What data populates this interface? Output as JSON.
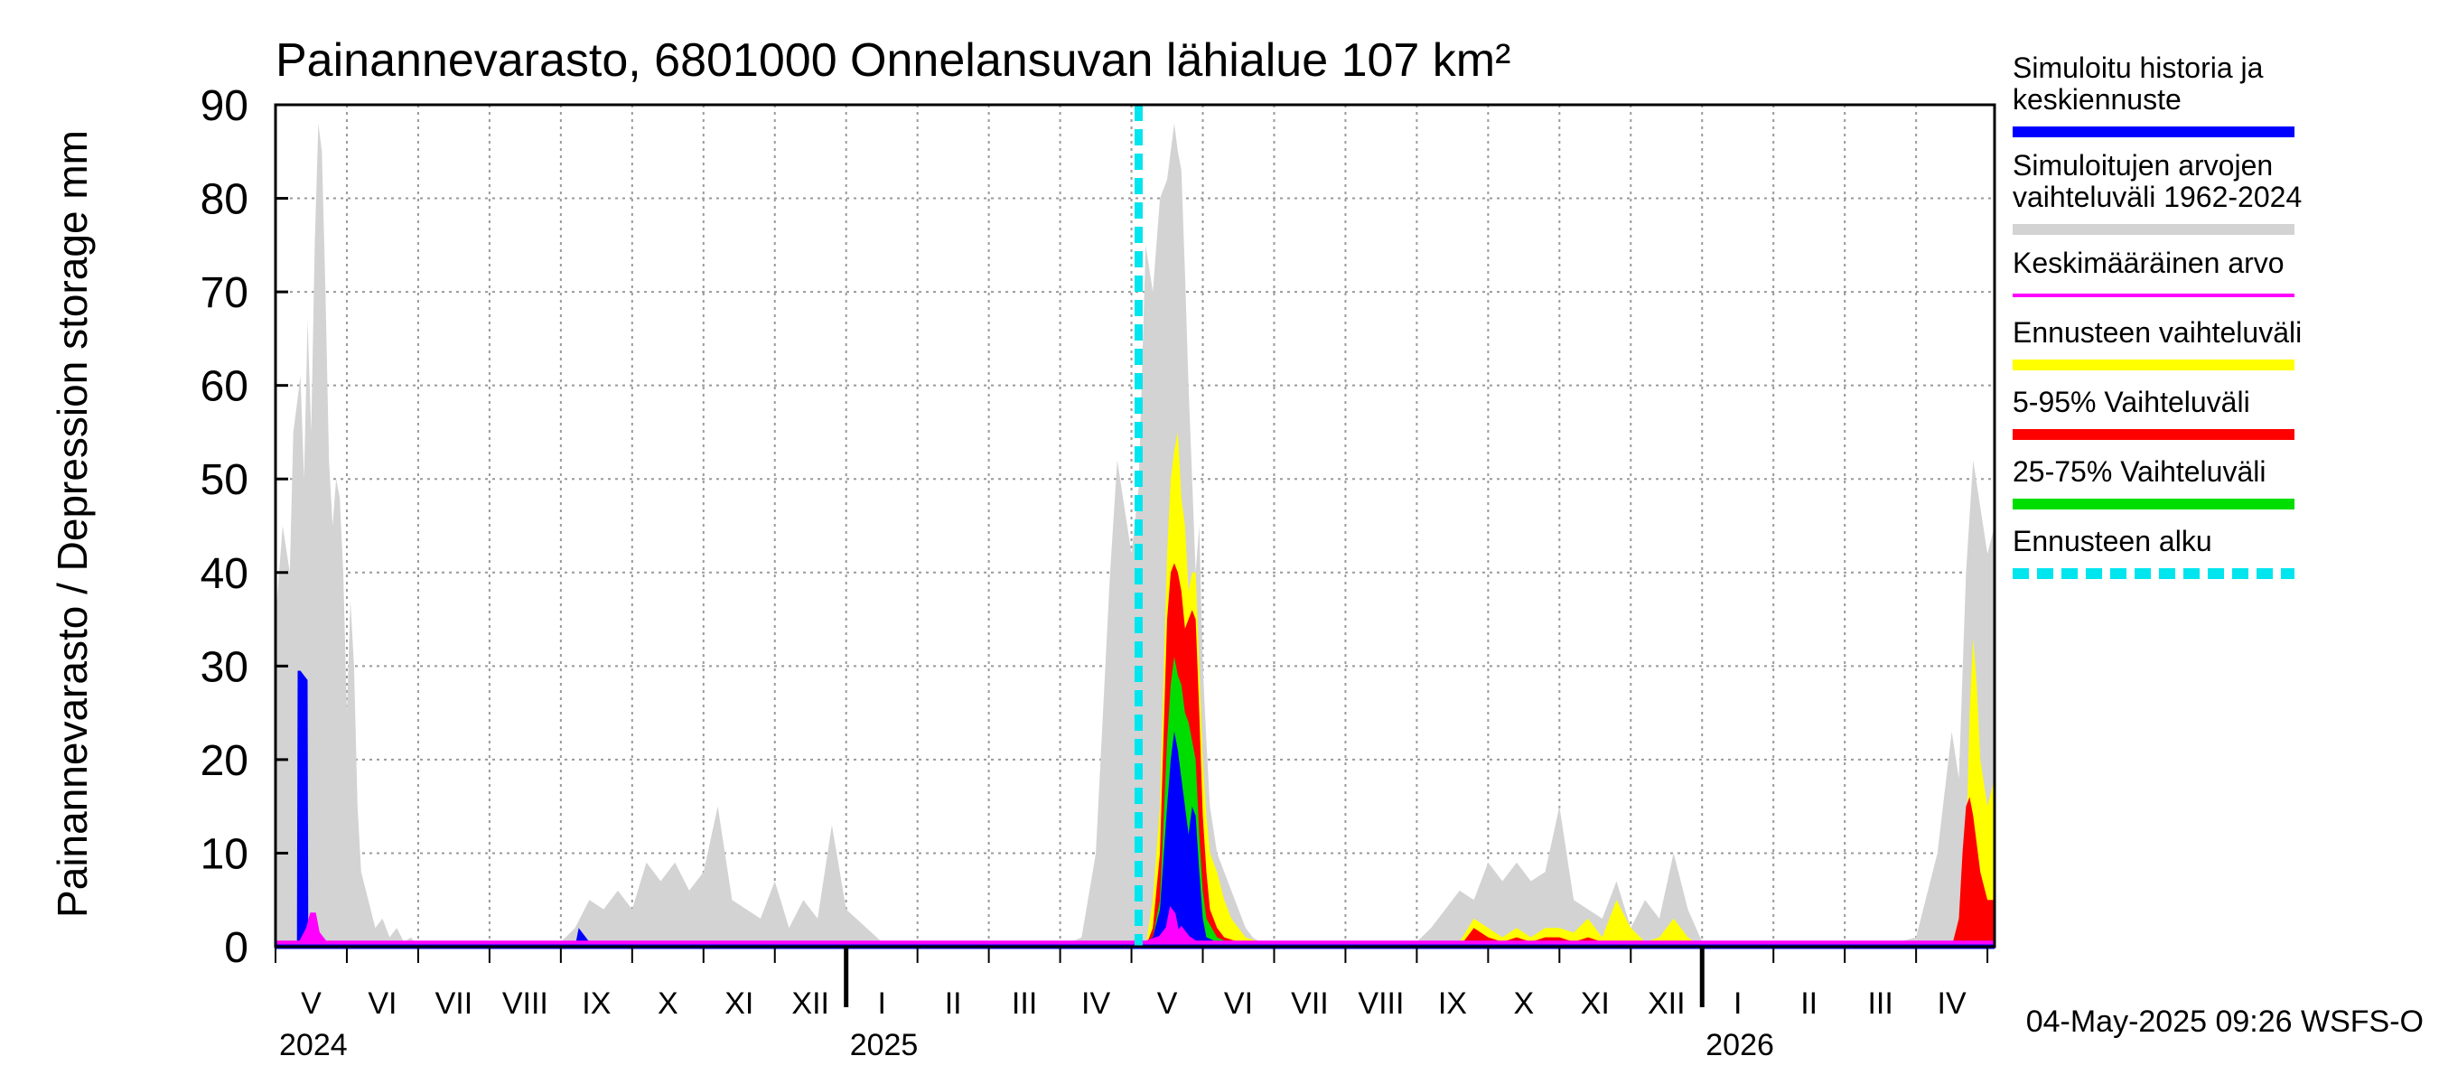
{
  "chart_data": {
    "type": "area",
    "title": "Painannevarasto, 6801000 Onnelansuvan lähialue 107 km²",
    "ylabel": "Painannevarasto / Depression storage    mm",
    "ylim": [
      0,
      90
    ],
    "yticks": [
      0,
      10,
      20,
      30,
      40,
      50,
      60,
      70,
      80,
      90
    ],
    "xlim_months": [
      0,
      24.1
    ],
    "x_unit": "months since 2024-05-01",
    "month_labels": [
      "V",
      "VI",
      "VII",
      "VIII",
      "IX",
      "X",
      "XI",
      "XII",
      "I",
      "II",
      "III",
      "IV",
      "V",
      "VI",
      "VII",
      "VIII",
      "IX",
      "X",
      "XI",
      "XII",
      "I",
      "II",
      "III",
      "IV"
    ],
    "year_labels": [
      {
        "label": "2024",
        "month": 0
      },
      {
        "label": "2025",
        "month": 8
      },
      {
        "label": "2026",
        "month": 20
      }
    ],
    "forecast_start_month": 12.1,
    "timestamp": "04-May-2025 09:26 WSFS-O",
    "legend": [
      {
        "label": "Simuloitu historia ja keskiennuste",
        "lines": [
          "Simuloitu historia ja",
          "keskiennuste"
        ],
        "color": "#0000ff",
        "style": "solid"
      },
      {
        "label": "Simuloitujen arvojen vaihteluväli 1962-2024",
        "lines": [
          "Simuloitujen arvojen",
          "vaihteluväli 1962-2024"
        ],
        "color": "#d3d3d3",
        "style": "solid"
      },
      {
        "label": "Keskimääräinen arvo",
        "lines": [
          "Keskimääräinen arvo"
        ],
        "color": "#ff00ff",
        "style": "thin"
      },
      {
        "label": "Ennusteen vaihteluväli",
        "lines": [
          "Ennusteen vaihteluväli"
        ],
        "color": "#ffff00",
        "style": "solid"
      },
      {
        "label": "5-95% Vaihteluväli",
        "lines": [
          "5-95% Vaihteluväli"
        ],
        "color": "#ff0000",
        "style": "solid"
      },
      {
        "label": "25-75% Vaihteluväli",
        "lines": [
          "25-75% Vaihteluväli"
        ],
        "color": "#00dd00",
        "style": "solid"
      },
      {
        "label": "Ennusteen alku",
        "lines": [
          "Ennusteen alku"
        ],
        "color": "#00e5ee",
        "style": "dashed"
      }
    ],
    "series": [
      {
        "name": "Simuloitujen arvojen vaihteluväli 1962-2024",
        "color": "#d3d3d3",
        "x": [
          0,
          0.1,
          0.2,
          0.25,
          0.3,
          0.35,
          0.4,
          0.45,
          0.5,
          0.55,
          0.6,
          0.65,
          0.7,
          0.75,
          0.8,
          0.85,
          0.9,
          0.95,
          1.0,
          1.05,
          1.1,
          1.15,
          1.2,
          1.3,
          1.4,
          1.5,
          1.6,
          1.7,
          1.8,
          1.9,
          2.0,
          2.5,
          3.0,
          3.5,
          4.0,
          4.2,
          4.4,
          4.6,
          4.8,
          5.0,
          5.2,
          5.4,
          5.6,
          5.8,
          6.0,
          6.2,
          6.4,
          6.6,
          6.8,
          7.0,
          7.2,
          7.4,
          7.6,
          7.8,
          8.0,
          8.5,
          9.0,
          9.5,
          10.0,
          10.5,
          11.0,
          11.3,
          11.5,
          11.6,
          11.7,
          11.8,
          11.9,
          12.0,
          12.1,
          12.2,
          12.3,
          12.4,
          12.5,
          12.6,
          12.65,
          12.7,
          12.75,
          12.8,
          12.85,
          12.9,
          12.95,
          13.0,
          13.05,
          13.1,
          13.2,
          13.3,
          13.4,
          13.5,
          13.6,
          13.7,
          13.8,
          14.0,
          14.5,
          15.0,
          15.5,
          16.0,
          16.2,
          16.4,
          16.6,
          16.8,
          17.0,
          17.2,
          17.4,
          17.6,
          17.8,
          18.0,
          18.2,
          18.4,
          18.6,
          18.8,
          19.0,
          19.2,
          19.4,
          19.6,
          19.8,
          20.0,
          20.5,
          21.0,
          21.5,
          22.0,
          22.5,
          23.0,
          23.3,
          23.5,
          23.6,
          23.7,
          23.8,
          23.9,
          24.0,
          24.1
        ],
        "y": [
          35,
          45,
          40,
          55,
          58,
          61,
          50,
          67,
          55,
          75,
          88,
          85,
          70,
          52,
          45,
          50,
          48,
          40,
          25,
          37,
          30,
          15,
          8,
          5,
          2,
          3,
          1,
          2,
          0.5,
          1,
          0,
          0,
          0,
          0,
          0.5,
          2,
          5,
          4,
          6,
          4,
          9,
          7,
          9,
          6,
          8,
          15,
          5,
          4,
          3,
          7,
          2,
          5,
          3,
          13,
          4,
          0.5,
          0,
          0,
          0,
          0,
          0,
          1,
          10,
          25,
          40,
          52,
          47,
          42,
          49,
          75,
          70,
          80,
          82,
          88,
          85,
          83,
          72,
          60,
          50,
          40,
          45,
          30,
          22,
          15,
          10,
          8,
          6,
          4,
          2,
          1,
          0.5,
          0,
          0,
          0,
          0,
          0.5,
          2,
          4,
          6,
          5,
          9,
          7,
          9,
          7,
          8,
          15,
          5,
          4,
          3,
          7,
          2,
          5,
          3,
          10,
          4,
          0.5,
          0,
          0,
          0,
          0,
          0,
          1,
          10,
          23,
          18,
          40,
          52,
          47,
          42,
          45
        ]
      },
      {
        "name": "Ennusteen vaihteluväli",
        "color": "#ffff00",
        "x": [
          12.1,
          12.2,
          12.3,
          12.4,
          12.5,
          12.55,
          12.6,
          12.65,
          12.7,
          12.75,
          12.8,
          12.85,
          12.9,
          12.95,
          13.0,
          13.05,
          13.1,
          13.2,
          13.3,
          13.4,
          13.5,
          13.6,
          13.8,
          14.0,
          16.4,
          16.6,
          16.8,
          17.0,
          17.2,
          17.4,
          17.6,
          17.8,
          18.0,
          18.2,
          18.4,
          18.6,
          18.8,
          19.0,
          19.2,
          19.4,
          19.6,
          19.8,
          20.0,
          23.3,
          23.5,
          23.6,
          23.7,
          23.75,
          23.8,
          23.85,
          23.9,
          24.0,
          24.1
        ],
        "y": [
          0,
          0,
          5,
          15,
          42,
          50,
          53,
          55,
          48,
          45,
          38,
          40,
          40,
          30,
          20,
          14,
          10,
          8,
          5,
          3,
          2,
          1,
          0.5,
          0,
          0,
          0.5,
          3,
          2,
          1,
          2,
          1,
          2,
          2,
          1.5,
          3,
          1,
          5,
          2,
          0.5,
          1,
          3,
          1,
          0,
          0,
          0,
          3,
          10,
          25,
          33,
          28,
          20,
          15,
          18
        ]
      },
      {
        "name": "5-95% Vaihteluväli",
        "color": "#ff0000",
        "x": [
          12.1,
          12.2,
          12.3,
          12.4,
          12.5,
          12.55,
          12.6,
          12.65,
          12.7,
          12.75,
          12.8,
          12.85,
          12.9,
          12.95,
          13.0,
          13.05,
          13.1,
          13.2,
          13.3,
          13.5,
          14.0,
          16.6,
          16.8,
          17.0,
          17.2,
          17.4,
          17.6,
          17.8,
          18.0,
          18.2,
          18.4,
          18.6,
          18.8,
          20.0,
          23.5,
          23.6,
          23.65,
          23.7,
          23.75,
          23.8,
          23.9,
          24.0,
          24.1
        ],
        "y": [
          0,
          0,
          2,
          10,
          35,
          40,
          41,
          40,
          38,
          34,
          35,
          36,
          35,
          25,
          14,
          8,
          4,
          2,
          1,
          0.5,
          0,
          0,
          2,
          1,
          0.5,
          1,
          0.5,
          1,
          1,
          0.5,
          1,
          0.5,
          0.5,
          0,
          0,
          3,
          10,
          15,
          16,
          14,
          8,
          5,
          5
        ]
      },
      {
        "name": "25-75% Vaihteluväli",
        "color": "#00dd00",
        "x": [
          12.1,
          12.3,
          12.4,
          12.5,
          12.55,
          12.6,
          12.65,
          12.7,
          12.75,
          12.8,
          12.85,
          12.9,
          12.95,
          13.0,
          13.05,
          13.2,
          13.5
        ],
        "y": [
          0,
          1,
          5,
          22,
          28,
          31,
          29,
          28,
          25,
          24,
          22,
          20,
          12,
          6,
          3,
          1,
          0
        ]
      },
      {
        "name": "Simuloitu historia ja keskiennuste",
        "color": "#0000ff",
        "x": [
          0,
          0.3,
          0.31,
          0.35,
          0.45,
          0.46,
          0.5,
          4.2,
          4.25,
          4.35,
          4.45,
          4.5,
          5.3,
          5.35,
          5.4,
          12.1,
          12.3,
          12.4,
          12.5,
          12.55,
          12.6,
          12.65,
          12.7,
          12.75,
          12.8,
          12.85,
          12.9,
          12.95,
          13.0,
          13.05,
          13.2,
          13.5,
          24.1
        ],
        "y": [
          0,
          0,
          29.5,
          29.5,
          28.5,
          0,
          0,
          0,
          2,
          1,
          0,
          0,
          0,
          0.5,
          0,
          0,
          1,
          4,
          15,
          20,
          23,
          21,
          18,
          15,
          12,
          15,
          14,
          8,
          3,
          1,
          0.5,
          0,
          0
        ]
      },
      {
        "name": "Keskimääräinen arvo",
        "color": "#ff00ff",
        "x": [
          0,
          0.35,
          0.45,
          0.5,
          0.55,
          0.6,
          0.7,
          12.2,
          12.4,
          12.5,
          12.55,
          12.6,
          12.65,
          12.7,
          12.8,
          12.9,
          24.1
        ],
        "y": [
          0.5,
          0.5,
          2,
          3.5,
          3.5,
          1.5,
          0.5,
          0.5,
          1,
          2,
          4,
          3.5,
          1.5,
          2,
          1,
          0.5,
          0.5
        ]
      }
    ]
  }
}
